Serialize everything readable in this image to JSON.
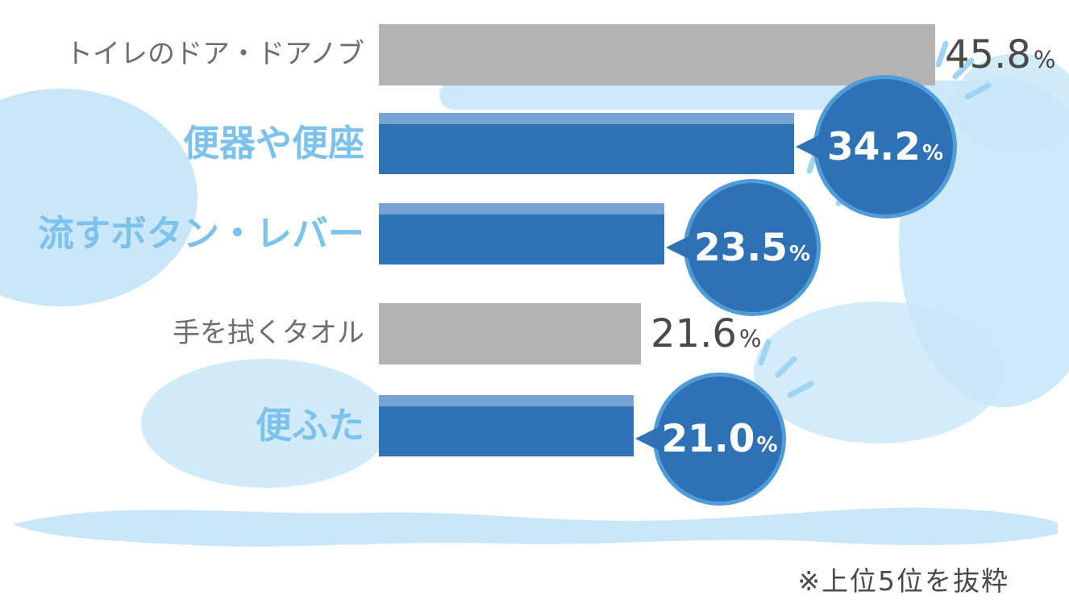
{
  "chart_data": {
    "type": "bar",
    "orientation": "horizontal",
    "title": "",
    "xlabel": "",
    "ylabel": "",
    "unit": "%",
    "xlim": [
      0,
      50
    ],
    "grid": false,
    "legend": null,
    "categories": [
      "トイレのドア・ドアノブ",
      "便器や便座",
      "流すボタン・レバー",
      "手を拭くタオル",
      "便ふた"
    ],
    "values": [
      45.8,
      34.2,
      23.5,
      21.6,
      21.0
    ],
    "rows": [
      {
        "label": "トイレのドア・ドアノブ",
        "value": 45.8,
        "value_display": "45.8",
        "unit": "%",
        "bar_style": "gray",
        "value_style": "plain-text"
      },
      {
        "label": "便器や便座",
        "value": 34.2,
        "value_display": "34.2",
        "unit": "%",
        "bar_style": "blue",
        "value_style": "bubble"
      },
      {
        "label": "流すボタン・レバー",
        "value": 23.5,
        "value_display": "23.5",
        "unit": "%",
        "bar_style": "blue",
        "value_style": "bubble"
      },
      {
        "label": "手を拭くタオル",
        "value": 21.6,
        "value_display": "21.6",
        "unit": "%",
        "bar_style": "gray",
        "value_style": "plain-text"
      },
      {
        "label": "便ふた",
        "value": 21.0,
        "value_display": "21.0",
        "unit": "%",
        "bar_style": "blue",
        "value_style": "bubble"
      }
    ],
    "footnote": "※上位5位を抜粋",
    "colors": {
      "bar_blue": "#2f73b7",
      "bar_blue_cap": "#76a3d3",
      "bar_gray": "#b3b3b3",
      "bubble_fill": "#2e72b5",
      "bubble_ring": "#4f9cd8",
      "bubble_text": "#ffffff",
      "label_blue": "#7cc2ec",
      "label_gray": "#6e6e6e",
      "value_text_gray": "#4a4a4a",
      "decoration_light_blue": "#c9e7f8"
    }
  }
}
